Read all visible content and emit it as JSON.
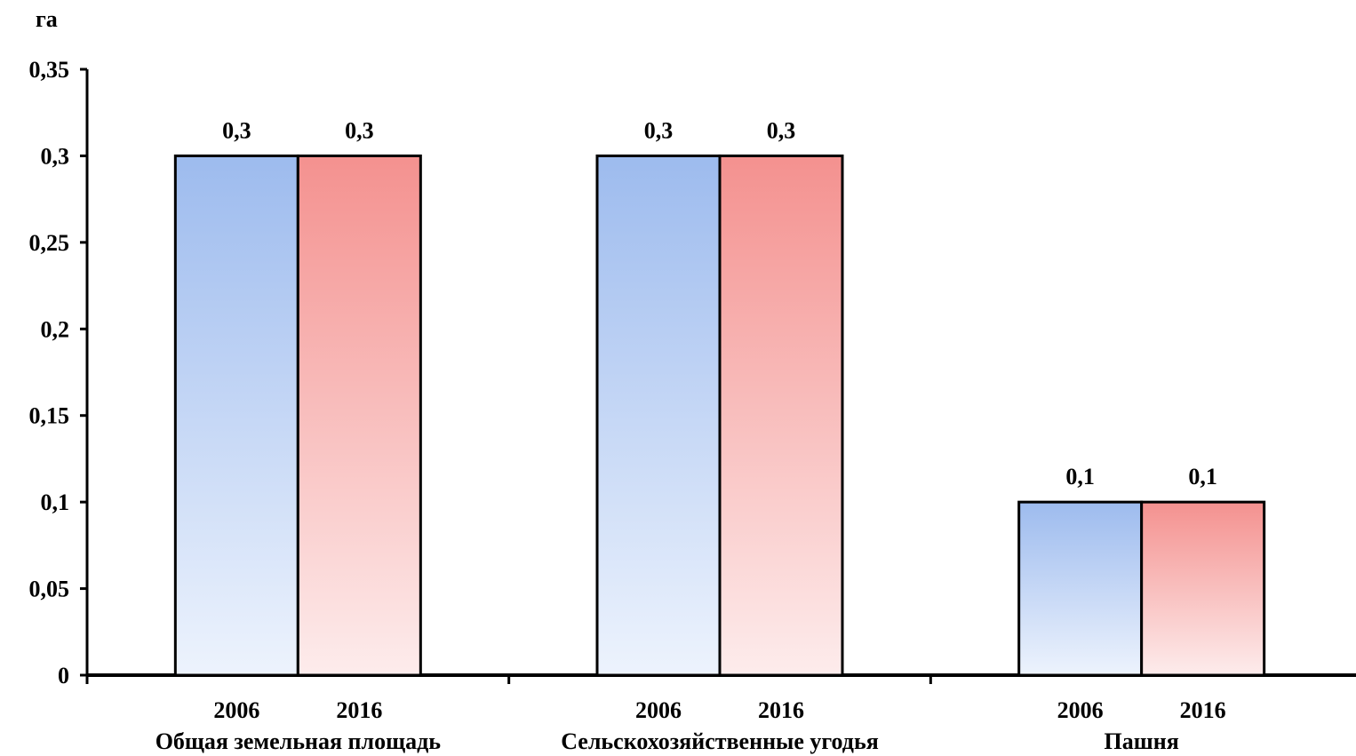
{
  "chart_data": {
    "type": "bar",
    "ylabel": "га",
    "ylim": [
      0,
      0.35
    ],
    "yticks": [
      "0",
      "0,05",
      "0,1",
      "0,15",
      "0,2",
      "0,25",
      "0,3",
      "0,35"
    ],
    "ytick_values": [
      0,
      0.05,
      0.1,
      0.15,
      0.2,
      0.25,
      0.3,
      0.35
    ],
    "groups": [
      {
        "category": "Общая земельная площадь",
        "bars": [
          {
            "year": "2006",
            "value": 0.3,
            "label": "0,3"
          },
          {
            "year": "2016",
            "value": 0.3,
            "label": "0,3"
          }
        ]
      },
      {
        "category": "Сельскохозяйственные угодья",
        "bars": [
          {
            "year": "2006",
            "value": 0.3,
            "label": "0,3"
          },
          {
            "year": "2016",
            "value": 0.3,
            "label": "0,3"
          }
        ]
      },
      {
        "category": "Пашня",
        "bars": [
          {
            "year": "2006",
            "value": 0.1,
            "label": "0,1"
          },
          {
            "year": "2016",
            "value": 0.1,
            "label": "0,1"
          }
        ]
      }
    ],
    "series_colors": {
      "2006": {
        "top": "#9dbbee",
        "bottom": "#edf3fd"
      },
      "2016": {
        "top": "#f4918f",
        "bottom": "#fdecec"
      }
    },
    "grid": false,
    "legend": "none"
  }
}
